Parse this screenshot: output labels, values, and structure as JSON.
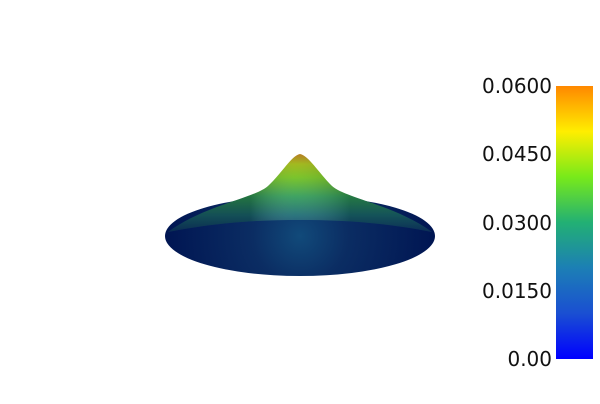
{
  "scene": {
    "background": "#ffffff",
    "object": "surface-mesh"
  },
  "colorbar": {
    "colors": [
      "#0000ff",
      "#1a4fd2",
      "#1c7fb5",
      "#22b074",
      "#78ea1a",
      "#ffee00",
      "#ff8800"
    ],
    "ticks": [
      {
        "label": "0.0600",
        "value": 0.06
      },
      {
        "label": "0.0450",
        "value": 0.045
      },
      {
        "label": "0.0300",
        "value": 0.03
      },
      {
        "label": "0.0150",
        "value": 0.015
      },
      {
        "label": "0.00",
        "value": 0.0
      }
    ],
    "range": [
      0.0,
      0.06
    ]
  }
}
